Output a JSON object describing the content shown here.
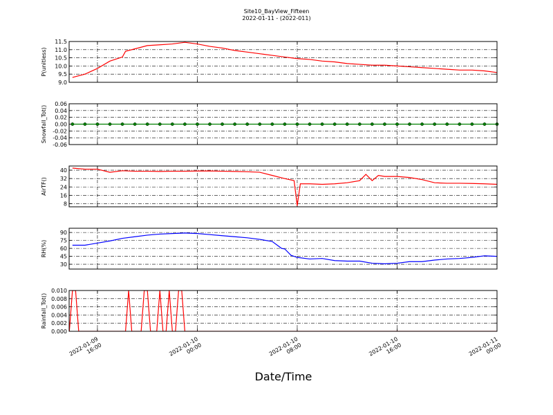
{
  "chart_data": [
    {
      "type": "line",
      "title": "Site10_BayView_Fifteen",
      "subtitle": "2022-01-11 - (2022-011)",
      "ylabel": "P(unitless)",
      "color": "#ff0000",
      "grid": true,
      "ylim": [
        9,
        11.5
      ],
      "yticks": [
        {
          "value": 9,
          "label": "9.0"
        },
        9.5,
        {
          "value": 10,
          "label": "10.0"
        },
        10.5,
        {
          "value": 11,
          "label": "11.0"
        },
        11.5
      ],
      "x": [
        "2022-01-09 14:00",
        "2022-01-09 15:00",
        "2022-01-09 16:00",
        "2022-01-09 17:00",
        "2022-01-09 18:00",
        "2022-01-09 18:15",
        "2022-01-09 19:00",
        "2022-01-09 20:00",
        "2022-01-09 21:00",
        "2022-01-09 22:00",
        "2022-01-09 23:00",
        "2022-01-10 00:00",
        "2022-01-10 01:00",
        "2022-01-10 02:00",
        "2022-01-10 03:00",
        "2022-01-10 04:00",
        "2022-01-10 05:00",
        "2022-01-10 06:00",
        "2022-01-10 07:00",
        "2022-01-10 08:00",
        "2022-01-10 09:00",
        "2022-01-10 10:00",
        "2022-01-10 11:00",
        "2022-01-10 12:00",
        "2022-01-10 13:00",
        "2022-01-10 14:00",
        "2022-01-10 15:00",
        "2022-01-10 16:00",
        "2022-01-10 17:00",
        "2022-01-10 18:00",
        "2022-01-10 19:00",
        "2022-01-10 20:00",
        "2022-01-10 21:00",
        "2022-01-10 22:00",
        "2022-01-10 23:00",
        "2022-01-11 00:00"
      ],
      "values": [
        9.3,
        9.5,
        9.85,
        10.3,
        10.55,
        10.9,
        11.05,
        11.25,
        11.3,
        11.35,
        11.45,
        11.35,
        11.2,
        11.1,
        10.95,
        10.85,
        10.75,
        10.65,
        10.55,
        10.45,
        10.4,
        10.3,
        10.25,
        10.15,
        10.1,
        10.05,
        10.05,
        10.0,
        9.95,
        9.9,
        9.85,
        9.8,
        9.75,
        9.75,
        9.7,
        9.6
      ]
    },
    {
      "type": "line",
      "ylabel": "Snowfall_Tot()",
      "color": "#008000",
      "marker": "o",
      "grid": true,
      "ylim": [
        -0.06,
        0.06
      ],
      "yticks": [
        -0.06,
        -0.04,
        -0.02,
        {
          "value": 0,
          "label": "0.00"
        },
        0.02,
        0.04,
        0.06
      ],
      "x": [
        "2022-01-09 14:00",
        "2022-01-09 15:00",
        "2022-01-09 16:00",
        "2022-01-09 17:00",
        "2022-01-09 18:00",
        "2022-01-09 19:00",
        "2022-01-09 20:00",
        "2022-01-09 21:00",
        "2022-01-09 22:00",
        "2022-01-09 23:00",
        "2022-01-10 00:00",
        "2022-01-10 01:00",
        "2022-01-10 02:00",
        "2022-01-10 03:00",
        "2022-01-10 04:00",
        "2022-01-10 05:00",
        "2022-01-10 06:00",
        "2022-01-10 07:00",
        "2022-01-10 08:00",
        "2022-01-10 09:00",
        "2022-01-10 10:00",
        "2022-01-10 11:00",
        "2022-01-10 12:00",
        "2022-01-10 13:00",
        "2022-01-10 14:00",
        "2022-01-10 15:00",
        "2022-01-10 16:00",
        "2022-01-10 17:00",
        "2022-01-10 18:00",
        "2022-01-10 19:00",
        "2022-01-10 20:00",
        "2022-01-10 21:00",
        "2022-01-10 22:00",
        "2022-01-10 23:00",
        "2022-01-11 00:00"
      ],
      "values": [
        0,
        0,
        0,
        0,
        0,
        0,
        0,
        0,
        0,
        0,
        0,
        0,
        0,
        0,
        0,
        0,
        0,
        0,
        0,
        0,
        0,
        0,
        0,
        0,
        0,
        0,
        0,
        0,
        0,
        0,
        0,
        0,
        0,
        0,
        0
      ]
    },
    {
      "type": "line",
      "ylabel": "AirTF()",
      "color": "#ff0000",
      "grid": true,
      "ylim": [
        5,
        44
      ],
      "yticks": [
        8,
        16,
        24,
        32,
        40
      ],
      "x": [
        "2022-01-09 14:00",
        "2022-01-09 15:00",
        "2022-01-09 16:00",
        "2022-01-09 17:00",
        "2022-01-09 18:00",
        "2022-01-09 19:00",
        "2022-01-09 20:00",
        "2022-01-09 21:00",
        "2022-01-09 22:00",
        "2022-01-09 23:00",
        "2022-01-10 00:00",
        "2022-01-10 01:00",
        "2022-01-10 02:00",
        "2022-01-10 03:00",
        "2022-01-10 04:00",
        "2022-01-10 05:00",
        "2022-01-10 06:00",
        "2022-01-10 07:00",
        "2022-01-10 07:45",
        "2022-01-10 08:00",
        "2022-01-10 08:15",
        "2022-01-10 09:00",
        "2022-01-10 10:00",
        "2022-01-10 11:00",
        "2022-01-10 12:00",
        "2022-01-10 13:00",
        "2022-01-10 13:30",
        "2022-01-10 14:00",
        "2022-01-10 14:30",
        "2022-01-10 15:00",
        "2022-01-10 16:00",
        "2022-01-10 17:00",
        "2022-01-10 18:00",
        "2022-01-10 19:00",
        "2022-01-10 20:00",
        "2022-01-10 21:00",
        "2022-01-10 22:00",
        "2022-01-10 23:00",
        "2022-01-11 00:00"
      ],
      "values": [
        42,
        41,
        41,
        38,
        39.5,
        39,
        39,
        38.8,
        39,
        39,
        39.2,
        39.3,
        39,
        38.8,
        38.5,
        38,
        35,
        32,
        30,
        6,
        27,
        27,
        26.5,
        27,
        28,
        30,
        36,
        30,
        35,
        34,
        34,
        33,
        31,
        28,
        27.5,
        27.5,
        27.3,
        27,
        26.5
      ]
    },
    {
      "type": "line",
      "ylabel": "RH(%)",
      "color": "#0000ff",
      "grid": true,
      "ylim": [
        21,
        98
      ],
      "yticks": [
        30,
        45,
        60,
        75,
        90
      ],
      "x": [
        "2022-01-09 14:00",
        "2022-01-09 15:00",
        "2022-01-09 16:00",
        "2022-01-09 17:00",
        "2022-01-09 18:00",
        "2022-01-09 19:00",
        "2022-01-09 20:00",
        "2022-01-09 21:00",
        "2022-01-09 22:00",
        "2022-01-09 23:00",
        "2022-01-10 00:00",
        "2022-01-10 01:00",
        "2022-01-10 02:00",
        "2022-01-10 03:00",
        "2022-01-10 04:00",
        "2022-01-10 05:00",
        "2022-01-10 06:00",
        "2022-01-10 06:45",
        "2022-01-10 07:00",
        "2022-01-10 07:30",
        "2022-01-10 08:00",
        "2022-01-10 09:00",
        "2022-01-10 10:00",
        "2022-01-10 11:00",
        "2022-01-10 12:00",
        "2022-01-10 13:00",
        "2022-01-10 14:00",
        "2022-01-10 15:00",
        "2022-01-10 16:00",
        "2022-01-10 17:00",
        "2022-01-10 18:00",
        "2022-01-10 19:00",
        "2022-01-10 20:00",
        "2022-01-10 21:00",
        "2022-01-10 22:00",
        "2022-01-10 23:00",
        "2022-01-11 00:00"
      ],
      "values": [
        66,
        66,
        70,
        74,
        79,
        82,
        85,
        87,
        88,
        89,
        88,
        86,
        84,
        82,
        80,
        77,
        73,
        60,
        59,
        47,
        43,
        40,
        41,
        37,
        36,
        36,
        32,
        31,
        32,
        35,
        35,
        38,
        40,
        41,
        43,
        46,
        45
      ]
    },
    {
      "type": "line",
      "ylabel": "Rainfall_Tot()",
      "xlabel": "Date/Time",
      "color": "#ff0000",
      "grid": true,
      "ylim": [
        0,
        0.01
      ],
      "yticks": [
        {
          "value": 0,
          "label": "0.000"
        },
        0.002,
        0.004,
        0.006,
        0.008,
        {
          "value": 0.01,
          "label": "0.010"
        }
      ],
      "xlim": [
        "2022-01-09 13:44",
        "2022-01-11 00:00"
      ],
      "xticks": [
        {
          "value": "2022-01-09 16:00",
          "label": [
            "2022-01-09",
            "16:00"
          ]
        },
        {
          "value": "2022-01-10 00:00",
          "label": [
            "2022-01-10",
            "00:00"
          ]
        },
        {
          "value": "2022-01-10 08:00",
          "label": [
            "2022-01-10",
            "08:00"
          ]
        },
        {
          "value": "2022-01-10 16:00",
          "label": [
            "2022-01-10",
            "16:00"
          ]
        },
        {
          "value": "2022-01-11 00:00",
          "label": [
            "2022-01-11",
            "00:00"
          ]
        }
      ],
      "x": [
        "2022-01-09 13:45",
        "2022-01-09 14:00",
        "2022-01-09 14:15",
        "2022-01-09 14:30",
        "2022-01-09 18:15",
        "2022-01-09 18:30",
        "2022-01-09 18:45",
        "2022-01-09 19:30",
        "2022-01-09 19:45",
        "2022-01-09 20:00",
        "2022-01-09 20:15",
        "2022-01-09 20:45",
        "2022-01-09 21:00",
        "2022-01-09 21:15",
        "2022-01-09 21:30",
        "2022-01-09 21:45",
        "2022-01-09 22:00",
        "2022-01-09 22:15",
        "2022-01-09 22:30",
        "2022-01-09 22:45",
        "2022-01-09 23:00",
        "2022-01-11 00:00"
      ],
      "values": [
        0,
        0.01,
        0.01,
        0,
        0,
        0.01,
        0,
        0,
        0.01,
        0.01,
        0,
        0,
        0.01,
        0,
        0,
        0.01,
        0,
        0,
        0.01,
        0.01,
        0,
        0
      ]
    }
  ]
}
